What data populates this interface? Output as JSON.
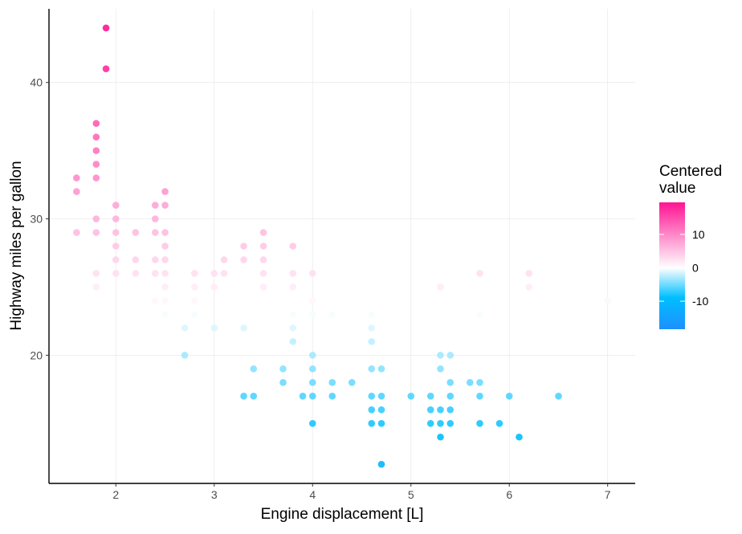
{
  "chart_data": {
    "type": "scatter",
    "xlabel": "Engine displacement [L]",
    "ylabel": "Highway miles per gallon",
    "xlim": [
      1.32,
      7.28
    ],
    "ylim": [
      10.6,
      45.4
    ],
    "xticks": [
      2,
      3,
      4,
      5,
      6,
      7
    ],
    "yticks": [
      20,
      30,
      40
    ],
    "x_tick_labels": [
      "2",
      "3",
      "4",
      "5",
      "6",
      "7"
    ],
    "y_tick_labels": [
      "20",
      "30",
      "40"
    ],
    "grid": true,
    "legend": {
      "title_lines": [
        "Centered",
        "value"
      ],
      "placement": "right",
      "gradient_range": [
        -18.4,
        19.6
      ],
      "ticks": [
        10,
        0,
        -10
      ],
      "labels": [
        "10",
        "0",
        "-10"
      ],
      "colors": {
        "low": "#1e90ff",
        "mid_low": "#00bfff",
        "mid": "#ffffff",
        "high": "#ff1493"
      }
    },
    "points": [
      {
        "x": 1.6,
        "y": 33
      },
      {
        "x": 1.6,
        "y": 32
      },
      {
        "x": 1.6,
        "y": 29
      },
      {
        "x": 1.8,
        "y": 29
      },
      {
        "x": 1.8,
        "y": 26
      },
      {
        "x": 1.8,
        "y": 25
      },
      {
        "x": 1.8,
        "y": 30
      },
      {
        "x": 1.8,
        "y": 33
      },
      {
        "x": 1.8,
        "y": 34
      },
      {
        "x": 1.8,
        "y": 35
      },
      {
        "x": 1.8,
        "y": 36
      },
      {
        "x": 1.8,
        "y": 37
      },
      {
        "x": 1.9,
        "y": 41
      },
      {
        "x": 1.9,
        "y": 44
      },
      {
        "x": 2.0,
        "y": 31
      },
      {
        "x": 2.0,
        "y": 30
      },
      {
        "x": 2.0,
        "y": 29
      },
      {
        "x": 2.0,
        "y": 28
      },
      {
        "x": 2.0,
        "y": 27
      },
      {
        "x": 2.0,
        "y": 26
      },
      {
        "x": 2.2,
        "y": 29
      },
      {
        "x": 2.2,
        "y": 27
      },
      {
        "x": 2.2,
        "y": 26
      },
      {
        "x": 2.4,
        "y": 31
      },
      {
        "x": 2.4,
        "y": 30
      },
      {
        "x": 2.4,
        "y": 29
      },
      {
        "x": 2.4,
        "y": 27
      },
      {
        "x": 2.4,
        "y": 26
      },
      {
        "x": 2.4,
        "y": 24
      },
      {
        "x": 2.5,
        "y": 32
      },
      {
        "x": 2.5,
        "y": 31
      },
      {
        "x": 2.5,
        "y": 29
      },
      {
        "x": 2.5,
        "y": 28
      },
      {
        "x": 2.5,
        "y": 27
      },
      {
        "x": 2.5,
        "y": 26
      },
      {
        "x": 2.5,
        "y": 25
      },
      {
        "x": 2.5,
        "y": 24
      },
      {
        "x": 2.5,
        "y": 23
      },
      {
        "x": 2.7,
        "y": 22
      },
      {
        "x": 2.7,
        "y": 20
      },
      {
        "x": 2.8,
        "y": 26
      },
      {
        "x": 2.8,
        "y": 25
      },
      {
        "x": 2.8,
        "y": 24
      },
      {
        "x": 2.8,
        "y": 23
      },
      {
        "x": 3.0,
        "y": 26
      },
      {
        "x": 3.0,
        "y": 25
      },
      {
        "x": 3.0,
        "y": 22
      },
      {
        "x": 3.1,
        "y": 27
      },
      {
        "x": 3.1,
        "y": 26
      },
      {
        "x": 3.3,
        "y": 28
      },
      {
        "x": 3.3,
        "y": 27
      },
      {
        "x": 3.3,
        "y": 22
      },
      {
        "x": 3.3,
        "y": 17
      },
      {
        "x": 3.4,
        "y": 19
      },
      {
        "x": 3.4,
        "y": 17
      },
      {
        "x": 3.5,
        "y": 29
      },
      {
        "x": 3.5,
        "y": 28
      },
      {
        "x": 3.5,
        "y": 27
      },
      {
        "x": 3.5,
        "y": 26
      },
      {
        "x": 3.5,
        "y": 25
      },
      {
        "x": 3.7,
        "y": 19
      },
      {
        "x": 3.7,
        "y": 18
      },
      {
        "x": 3.8,
        "y": 28
      },
      {
        "x": 3.8,
        "y": 26
      },
      {
        "x": 3.8,
        "y": 25
      },
      {
        "x": 3.8,
        "y": 23
      },
      {
        "x": 3.8,
        "y": 22
      },
      {
        "x": 3.8,
        "y": 21
      },
      {
        "x": 3.9,
        "y": 17
      },
      {
        "x": 4.0,
        "y": 26
      },
      {
        "x": 4.0,
        "y": 24
      },
      {
        "x": 4.0,
        "y": 23
      },
      {
        "x": 4.0,
        "y": 20
      },
      {
        "x": 4.0,
        "y": 19
      },
      {
        "x": 4.0,
        "y": 18
      },
      {
        "x": 4.0,
        "y": 17
      },
      {
        "x": 4.0,
        "y": 15
      },
      {
        "x": 4.2,
        "y": 23
      },
      {
        "x": 4.2,
        "y": 18
      },
      {
        "x": 4.2,
        "y": 17
      },
      {
        "x": 4.4,
        "y": 18
      },
      {
        "x": 4.6,
        "y": 23
      },
      {
        "x": 4.6,
        "y": 22
      },
      {
        "x": 4.6,
        "y": 21
      },
      {
        "x": 4.6,
        "y": 19
      },
      {
        "x": 4.6,
        "y": 17
      },
      {
        "x": 4.6,
        "y": 16
      },
      {
        "x": 4.6,
        "y": 15
      },
      {
        "x": 4.7,
        "y": 19
      },
      {
        "x": 4.7,
        "y": 17
      },
      {
        "x": 4.7,
        "y": 16
      },
      {
        "x": 4.7,
        "y": 15
      },
      {
        "x": 4.7,
        "y": 12
      },
      {
        "x": 5.0,
        "y": 17
      },
      {
        "x": 5.2,
        "y": 17
      },
      {
        "x": 5.2,
        "y": 16
      },
      {
        "x": 5.2,
        "y": 15
      },
      {
        "x": 5.3,
        "y": 25
      },
      {
        "x": 5.3,
        "y": 20
      },
      {
        "x": 5.3,
        "y": 19
      },
      {
        "x": 5.3,
        "y": 16
      },
      {
        "x": 5.3,
        "y": 15
      },
      {
        "x": 5.3,
        "y": 14
      },
      {
        "x": 5.4,
        "y": 20
      },
      {
        "x": 5.4,
        "y": 18
      },
      {
        "x": 5.4,
        "y": 17
      },
      {
        "x": 5.4,
        "y": 16
      },
      {
        "x": 5.4,
        "y": 15
      },
      {
        "x": 5.6,
        "y": 18
      },
      {
        "x": 5.7,
        "y": 26
      },
      {
        "x": 5.7,
        "y": 23
      },
      {
        "x": 5.7,
        "y": 18
      },
      {
        "x": 5.7,
        "y": 17
      },
      {
        "x": 5.7,
        "y": 15
      },
      {
        "x": 5.9,
        "y": 15
      },
      {
        "x": 6.0,
        "y": 17
      },
      {
        "x": 6.1,
        "y": 14
      },
      {
        "x": 6.2,
        "y": 26
      },
      {
        "x": 6.2,
        "y": 25
      },
      {
        "x": 6.5,
        "y": 17
      },
      {
        "x": 7.0,
        "y": 24
      }
    ]
  }
}
